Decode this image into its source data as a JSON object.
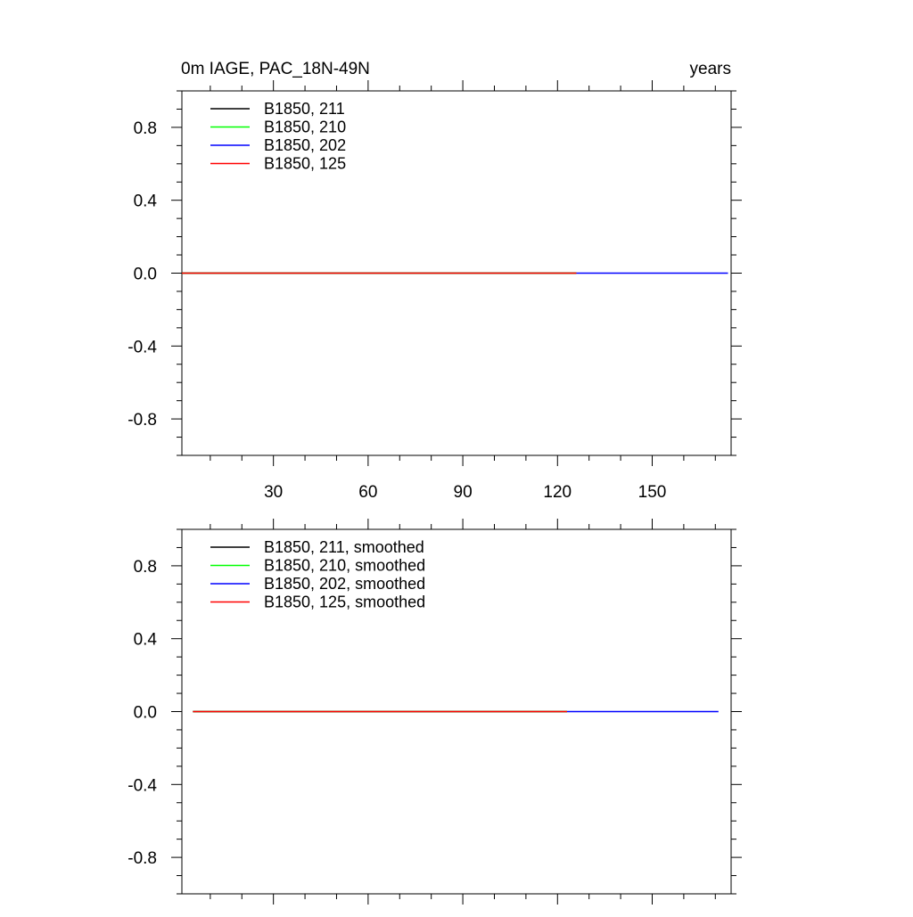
{
  "figure": {
    "title_left": "0m IAGE, PAC_18N-49N",
    "title_right": "years"
  },
  "chart_data": [
    {
      "type": "line",
      "panel": "top",
      "xlim": [
        1,
        175
      ],
      "ylim": [
        -1,
        1
      ],
      "xticks": [
        30,
        60,
        90,
        120,
        150
      ],
      "xtick_labels": [
        "30",
        "60",
        "90",
        "120",
        "150"
      ],
      "show_xtick_labels": true,
      "yticks": [
        -0.8,
        -0.4,
        0.0,
        0.4,
        0.8
      ],
      "ytick_labels": [
        "-0.8",
        "-0.4",
        "0.0",
        "0.4",
        "0.8"
      ],
      "grid": false,
      "legend_position": "top-left",
      "series": [
        {
          "name": "B1850, 211",
          "color": "#000000",
          "x": [
            1,
            126
          ],
          "y": [
            0,
            0
          ]
        },
        {
          "name": "B1850, 210",
          "color": "#00ff00",
          "x": [
            1,
            126
          ],
          "y": [
            0,
            0
          ]
        },
        {
          "name": "B1850, 202",
          "color": "#0000ff",
          "x": [
            1,
            174
          ],
          "y": [
            0,
            0
          ]
        },
        {
          "name": "B1850, 125",
          "color": "#ff0000",
          "x": [
            1,
            126
          ],
          "y": [
            0,
            0
          ]
        }
      ]
    },
    {
      "type": "line",
      "panel": "bottom",
      "xlim": [
        1,
        175
      ],
      "ylim": [
        -1,
        1
      ],
      "xticks": [
        30,
        60,
        90,
        120,
        150
      ],
      "xtick_labels": [
        "",
        "",
        "",
        "",
        ""
      ],
      "show_xtick_labels": false,
      "yticks": [
        -0.8,
        -0.4,
        0.0,
        0.4,
        0.8
      ],
      "ytick_labels": [
        "-0.8",
        "-0.4",
        "0.0",
        "0.4",
        "0.8"
      ],
      "grid": false,
      "legend_position": "top-left",
      "series": [
        {
          "name": "B1850, 211, smoothed",
          "color": "#000000",
          "x": [
            4.5,
            123
          ],
          "y": [
            0,
            0
          ]
        },
        {
          "name": "B1850, 210, smoothed",
          "color": "#00ff00",
          "x": [
            4.5,
            123
          ],
          "y": [
            0,
            0
          ]
        },
        {
          "name": "B1850, 202, smoothed",
          "color": "#0000ff",
          "x": [
            4.5,
            171
          ],
          "y": [
            0,
            0
          ]
        },
        {
          "name": "B1850, 125, smoothed",
          "color": "#ff0000",
          "x": [
            4.5,
            123
          ],
          "y": [
            0,
            0
          ]
        }
      ]
    }
  ]
}
